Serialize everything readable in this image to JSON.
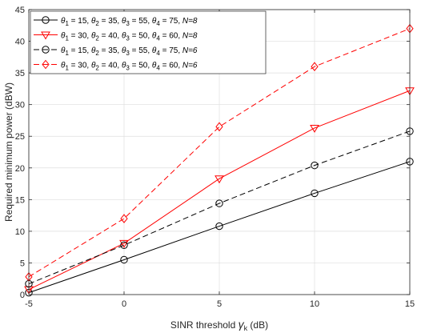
{
  "chart_data": {
    "type": "line",
    "x": [
      -5,
      0,
      5,
      10,
      15
    ],
    "xlim": [
      -5,
      15
    ],
    "ylim": [
      0,
      45
    ],
    "xticks": [
      -5,
      0,
      5,
      10,
      15
    ],
    "yticks": [
      0,
      5,
      10,
      15,
      20,
      25,
      30,
      35,
      40,
      45
    ],
    "xlabel_prefix": "SINR threshold ",
    "xlabel_symbol": "γ",
    "xlabel_sub": "k",
    "xlabel_suffix": " (dB)",
    "ylabel": "Required minimum power (dBW)",
    "grid": true,
    "legend_position": "top-left",
    "series": [
      {
        "color": "#000000",
        "dashed": false,
        "marker": "circle",
        "thetas": [
          "15",
          "35",
          "55",
          "75"
        ],
        "n_text": "N=8",
        "values": [
          0.3,
          5.5,
          10.8,
          16.0,
          21.0
        ]
      },
      {
        "color": "#ff0000",
        "dashed": false,
        "marker": "triangle-down",
        "thetas": [
          "30",
          "40",
          "50",
          "60"
        ],
        "n_text": "N=8",
        "values": [
          0.8,
          8.1,
          18.3,
          26.3,
          32.2
        ]
      },
      {
        "color": "#000000",
        "dashed": true,
        "marker": "circle",
        "thetas": [
          "15",
          "35",
          "55",
          "75"
        ],
        "n_text": "N=6",
        "values": [
          1.7,
          7.8,
          14.4,
          20.4,
          25.8
        ]
      },
      {
        "color": "#ff0000",
        "dashed": true,
        "marker": "diamond",
        "thetas": [
          "30",
          "40",
          "50",
          "60"
        ],
        "n_text": "N=6",
        "values": [
          2.8,
          12.0,
          26.5,
          36.0,
          42.0
        ]
      }
    ]
  }
}
